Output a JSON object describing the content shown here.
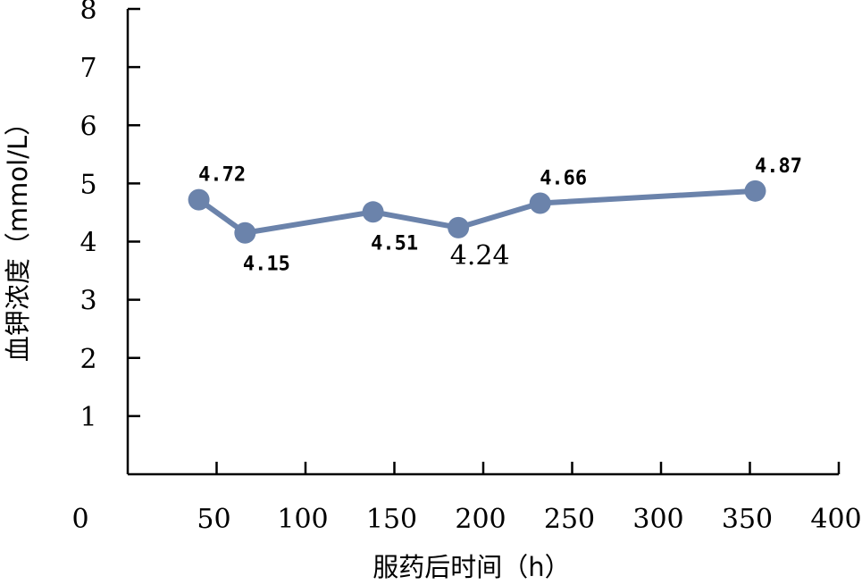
{
  "chart_data": {
    "type": "line",
    "title": "",
    "xlabel": "服药后时间（h）",
    "ylabel": "血钾浓度（mmol/L）",
    "xlim": [
      0,
      400
    ],
    "ylim": [
      0,
      8
    ],
    "xticks": [
      0,
      50,
      100,
      150,
      200,
      250,
      300,
      350,
      400
    ],
    "yticks": [
      1,
      2,
      3,
      4,
      5,
      6,
      7,
      8
    ],
    "grid": false,
    "legend": "none",
    "series": [
      {
        "color": "#6b83ab",
        "points": [
          {
            "x": 40,
            "y": 4.72,
            "label": "4.72",
            "label_pos": "above"
          },
          {
            "x": 66,
            "y": 4.15,
            "label": "4.15",
            "label_pos": "below"
          },
          {
            "x": 138,
            "y": 4.51,
            "label": "4.51",
            "label_pos": "below"
          },
          {
            "x": 186,
            "y": 4.24,
            "label": "4.24",
            "label_pos": "below"
          },
          {
            "x": 232,
            "y": 4.66,
            "label": "4.66",
            "label_pos": "above"
          },
          {
            "x": 353,
            "y": 4.87,
            "label": "4.87",
            "label_pos": "above"
          }
        ]
      }
    ]
  }
}
